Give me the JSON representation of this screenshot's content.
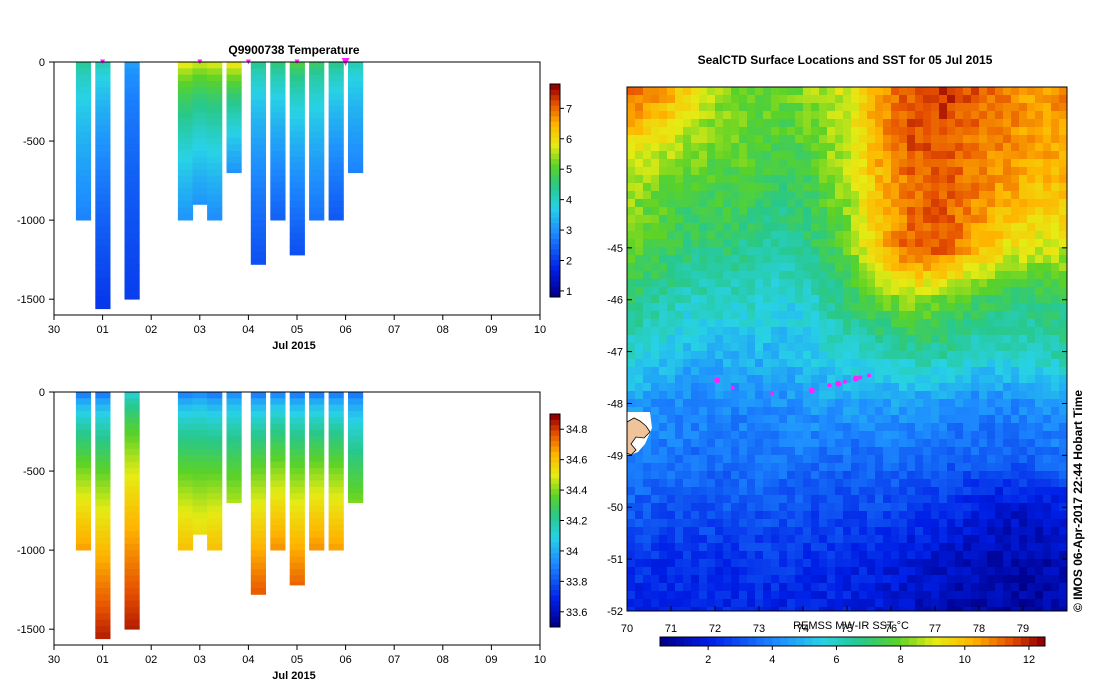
{
  "chart_data": [
    {
      "type": "heatmap",
      "title": "Q9900738  Temperature",
      "xlabel": "Jul 2015",
      "x_tick_labels": [
        "30",
        "01",
        "02",
        "03",
        "04",
        "05",
        "06",
        "07",
        "08",
        "09",
        "10"
      ],
      "ylabel": "",
      "ylim": [
        -1600,
        0
      ],
      "y_ticks": [
        0,
        -500,
        -1000,
        -1500
      ],
      "colorbar": {
        "ticks": [
          1,
          2,
          3,
          4,
          5,
          6,
          7
        ],
        "range": [
          0.8,
          7.8
        ],
        "colormap": "jet"
      },
      "surface_markers": [
        1.0,
        3.0,
        4.0,
        5.0,
        6.0
      ],
      "profiles": [
        {
          "x": 0.6,
          "depth": 1000,
          "surface": 4.5,
          "bottom": 2.8
        },
        {
          "x": 1.0,
          "depth": 1560,
          "surface": 4.3,
          "bottom": 1.9
        },
        {
          "x": 1.6,
          "depth": 1500,
          "surface": 3.2,
          "bottom": 2.0
        },
        {
          "x": 2.7,
          "depth": 1000,
          "surface": 6.2,
          "bottom": 3.0
        },
        {
          "x": 3.0,
          "depth": 900,
          "surface": 6.0,
          "bottom": 3.0
        },
        {
          "x": 3.3,
          "depth": 1000,
          "surface": 6.1,
          "bottom": 2.9
        },
        {
          "x": 3.7,
          "depth": 700,
          "surface": 6.4,
          "bottom": 3.0
        },
        {
          "x": 4.2,
          "depth": 1280,
          "surface": 4.6,
          "bottom": 2.2
        },
        {
          "x": 4.6,
          "depth": 1000,
          "surface": 4.8,
          "bottom": 2.4
        },
        {
          "x": 5.0,
          "depth": 1220,
          "surface": 5.2,
          "bottom": 2.2
        },
        {
          "x": 5.4,
          "depth": 1000,
          "surface": 4.9,
          "bottom": 2.6
        },
        {
          "x": 5.8,
          "depth": 1000,
          "surface": 4.7,
          "bottom": 2.3
        },
        {
          "x": 6.2,
          "depth": 700,
          "surface": 4.3,
          "bottom": 2.8
        }
      ]
    },
    {
      "type": "heatmap",
      "title": "",
      "xlabel": "Jul 2015",
      "x_tick_labels": [
        "30",
        "01",
        "02",
        "03",
        "04",
        "05",
        "06",
        "07",
        "08",
        "09",
        "10"
      ],
      "ylabel": "",
      "ylim": [
        -1600,
        0
      ],
      "y_ticks": [
        0,
        -500,
        -1000,
        -1500
      ],
      "colorbar": {
        "ticks": [
          33.6,
          33.8,
          34,
          34.2,
          34.4,
          34.6,
          34.8
        ],
        "tick_labels": [
          "33.6",
          "33.8",
          "34",
          "34.2",
          "34.4",
          "34.6",
          "34.8"
        ],
        "range": [
          33.5,
          34.9
        ],
        "colormap": "jet"
      },
      "profiles": [
        {
          "x": 0.6,
          "depth": 1000,
          "surface": 33.8,
          "bottom": 34.68
        },
        {
          "x": 1.0,
          "depth": 1560,
          "surface": 33.8,
          "bottom": 34.86
        },
        {
          "x": 1.6,
          "depth": 1500,
          "surface": 34.05,
          "bottom": 34.86
        },
        {
          "x": 2.7,
          "depth": 1000,
          "surface": 33.82,
          "bottom": 34.62
        },
        {
          "x": 3.0,
          "depth": 900,
          "surface": 33.85,
          "bottom": 34.55
        },
        {
          "x": 3.3,
          "depth": 1000,
          "surface": 33.8,
          "bottom": 34.62
        },
        {
          "x": 3.7,
          "depth": 700,
          "surface": 33.85,
          "bottom": 34.45
        },
        {
          "x": 4.2,
          "depth": 1280,
          "surface": 33.8,
          "bottom": 34.78
        },
        {
          "x": 4.6,
          "depth": 1000,
          "surface": 33.82,
          "bottom": 34.7
        },
        {
          "x": 5.0,
          "depth": 1220,
          "surface": 33.8,
          "bottom": 34.76
        },
        {
          "x": 5.4,
          "depth": 1000,
          "surface": 33.8,
          "bottom": 34.7
        },
        {
          "x": 5.8,
          "depth": 1000,
          "surface": 33.8,
          "bottom": 34.68
        },
        {
          "x": 6.2,
          "depth": 700,
          "surface": 33.8,
          "bottom": 34.4
        }
      ]
    },
    {
      "type": "heatmap",
      "title": "SealCTD Surface Locations and SST for 05 Jul 2015",
      "xlabel": "REMSS MW-IR SST °C",
      "xlim": [
        70,
        80
      ],
      "x_ticks": [
        70,
        71,
        72,
        73,
        74,
        75,
        76,
        77,
        78,
        79
      ],
      "ylim": [
        -52,
        -41.9
      ],
      "y_ticks": [
        -45,
        -46,
        -47,
        -48,
        -49,
        -50,
        -51,
        -52
      ],
      "colorbar": {
        "ticks": [
          2,
          4,
          6,
          8,
          10,
          12
        ],
        "range": [
          0.5,
          12.5
        ],
        "colormap": "jet"
      },
      "sst_field": [
        {
          "lat": -42.0,
          "values": [
            11.5,
            11,
            9.5,
            8.5,
            8,
            8,
            8.5,
            9,
            10.5,
            11.5,
            12,
            11.5,
            11,
            10.5,
            11
          ]
        },
        {
          "lat": -43.0,
          "values": [
            9.5,
            9,
            8.5,
            8,
            8,
            7.5,
            8,
            9,
            10.5,
            11.5,
            11.5,
            11,
            11,
            10.5,
            10.5
          ]
        },
        {
          "lat": -44.0,
          "values": [
            8.5,
            8,
            7.5,
            7.5,
            7.5,
            7,
            7.5,
            8.5,
            10,
            11,
            11.5,
            11,
            10.5,
            10,
            10
          ]
        },
        {
          "lat": -45.0,
          "values": [
            8,
            7.5,
            7,
            7,
            6.5,
            6.5,
            7,
            8,
            10,
            11.5,
            11.5,
            10.5,
            9.5,
            9,
            9
          ]
        },
        {
          "lat": -46.0,
          "values": [
            7,
            6.5,
            6,
            6,
            6,
            5.5,
            6,
            7,
            8,
            8.5,
            8,
            7.5,
            7,
            7,
            7
          ]
        },
        {
          "lat": -47.0,
          "values": [
            6,
            5.5,
            5,
            5,
            5,
            5,
            5.5,
            6,
            6,
            6.5,
            6.5,
            6,
            6,
            6,
            6.5
          ]
        },
        {
          "lat": -48.0,
          "values": [
            4.5,
            4.2,
            4,
            4,
            4,
            4.2,
            4.5,
            4.5,
            4.5,
            4.5,
            4.3,
            4,
            4,
            4.2,
            4.5
          ]
        },
        {
          "lat": -49.0,
          "values": [
            3.8,
            3.8,
            3.6,
            3.6,
            3.8,
            3.8,
            3.6,
            3.5,
            3.6,
            3.5,
            3.3,
            3.3,
            3.3,
            3.5,
            3.6
          ]
        },
        {
          "lat": -50.0,
          "values": [
            3.2,
            3,
            3,
            3,
            3,
            3,
            2.8,
            2.8,
            2.8,
            2.6,
            2.4,
            2,
            1.6,
            1.5,
            2
          ]
        },
        {
          "lat": -51.0,
          "values": [
            2.5,
            2.3,
            2.3,
            2.3,
            2.4,
            2.4,
            2.3,
            2.2,
            2,
            1.7,
            1.5,
            1.2,
            1,
            1,
            1.2
          ]
        },
        {
          "lat": -52.0,
          "values": [
            2,
            2,
            2,
            2,
            2,
            2,
            1.9,
            1.8,
            1.6,
            1.4,
            1.2,
            1,
            0.9,
            0.9,
            1
          ]
        }
      ],
      "seal_locations": [
        {
          "lon": 72.05,
          "lat": -47.55
        },
        {
          "lon": 72.4,
          "lat": -47.7
        },
        {
          "lon": 73.3,
          "lat": -47.8
        },
        {
          "lon": 74.2,
          "lat": -47.75
        },
        {
          "lon": 74.6,
          "lat": -47.65
        },
        {
          "lon": 74.95,
          "lat": -47.58
        },
        {
          "lon": 75.2,
          "lat": -47.52
        },
        {
          "lon": 75.3,
          "lat": -47.5
        },
        {
          "lon": 75.5,
          "lat": -47.46
        },
        {
          "lon": 74.8,
          "lat": -47.62
        }
      ]
    }
  ],
  "labels": {
    "timestamp": "IMOS 06-Apr-2017 22:44 Hobart Time"
  },
  "colors": {
    "marker": "#ff22ff",
    "land": "#f0c49a"
  }
}
